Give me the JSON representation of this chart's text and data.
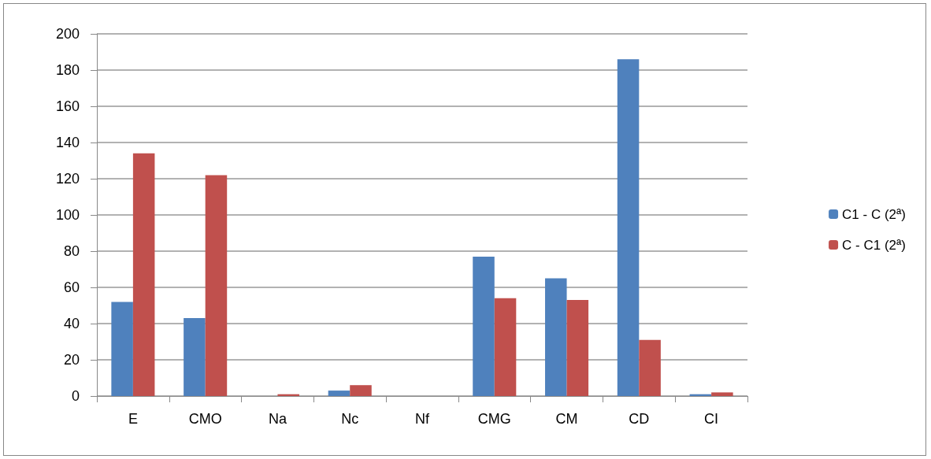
{
  "chart_data": {
    "type": "bar",
    "categories": [
      "E",
      "CMO",
      "Na",
      "Nc",
      "Nf",
      "CMG",
      "CM",
      "CD",
      "CI"
    ],
    "series": [
      {
        "name": "C1 - C (2ª)",
        "color": "#4f81bd",
        "values": [
          52,
          43,
          0,
          3,
          0,
          77,
          65,
          186,
          1
        ]
      },
      {
        "name": "C - C1 (2ª)",
        "color": "#c0504d",
        "values": [
          134,
          122,
          1,
          6,
          0,
          54,
          53,
          31,
          2
        ]
      }
    ],
    "ylim": [
      0,
      200
    ],
    "yticks": [
      0,
      20,
      40,
      60,
      80,
      100,
      120,
      140,
      160,
      180,
      200
    ],
    "grid": "y",
    "legend": "right"
  }
}
